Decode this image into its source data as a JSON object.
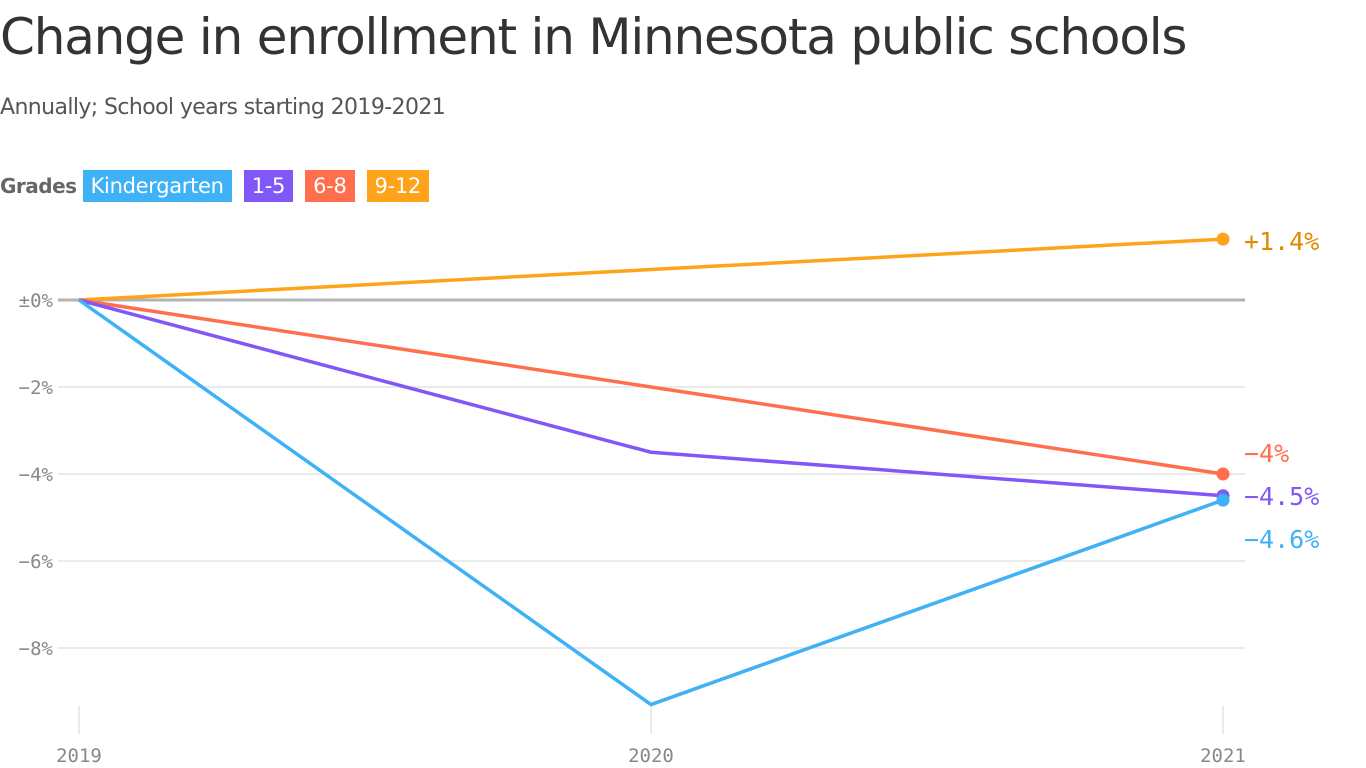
{
  "header": {
    "title": "Change in enrollment in Minnesota public schools",
    "subtitle": "Annually; School years starting 2019-2021"
  },
  "legend": {
    "label": "Grades",
    "items": [
      {
        "name": "Kindergarten",
        "color": "#3FB1F7"
      },
      {
        "name": "1-5",
        "color": "#8257F7"
      },
      {
        "name": "6-8",
        "color": "#FF6F4E"
      },
      {
        "name": "9-12",
        "color": "#FFA31A"
      }
    ]
  },
  "chart_data": {
    "type": "line",
    "title": "Change in enrollment in Minnesota public schools",
    "subtitle": "Annually; School years starting 2019-2021",
    "x": [
      "2019",
      "2020",
      "2021"
    ],
    "ylim": [
      -9.5,
      1.8
    ],
    "yticks": [
      0,
      -2,
      -4,
      -6,
      -8
    ],
    "ytick_labels": [
      "±0%",
      "−2%",
      "−4%",
      "−6%",
      "−8%"
    ],
    "grid": true,
    "legend_position": "top-left",
    "series": [
      {
        "name": "9-12",
        "color": "#FFA31A",
        "label_color": "#E08A00",
        "values": [
          0,
          0.7,
          1.4
        ],
        "end_label": "+1.4%"
      },
      {
        "name": "6-8",
        "color": "#FF6F4E",
        "label_color": "#FF6F4E",
        "values": [
          0,
          -2.0,
          -4.0
        ],
        "end_label": "−4%"
      },
      {
        "name": "1-5",
        "color": "#8257F7",
        "label_color": "#8257F7",
        "values": [
          0,
          -3.5,
          -4.5
        ],
        "end_label": "−4.5%"
      },
      {
        "name": "Kindergarten",
        "color": "#3FB1F7",
        "label_color": "#3FB1F7",
        "values": [
          0,
          -9.3,
          -4.6
        ],
        "end_label": "−4.6%"
      }
    ]
  }
}
